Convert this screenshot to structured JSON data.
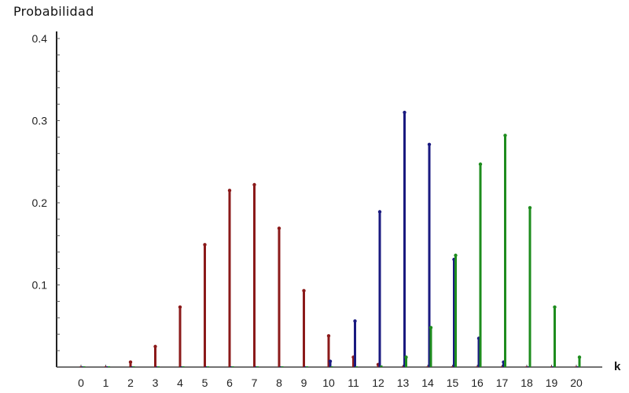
{
  "chart_data": {
    "type": "bar",
    "title": "",
    "xlabel": "k",
    "ylabel": "Probabilidad",
    "ylim": [
      0,
      0.4
    ],
    "xlim": [
      -0.5,
      20.5
    ],
    "grid": false,
    "legend": null,
    "x": [
      0,
      1,
      2,
      3,
      4,
      5,
      6,
      7,
      8,
      9,
      10,
      11,
      12,
      13,
      14,
      15,
      16,
      17,
      18,
      19,
      20
    ],
    "x_tick_labels": [
      "0",
      "1",
      "2",
      "3",
      "4",
      "5",
      "6",
      "7",
      "8",
      "9",
      "10",
      "11",
      "12",
      "13",
      "14",
      "15",
      "16",
      "17",
      "18",
      "19",
      "20"
    ],
    "y_tick_labels": [
      "0.1",
      "0.2",
      "0.3",
      "0.4"
    ],
    "y_ticks": [
      0.1,
      0.2,
      0.3,
      0.4
    ],
    "series": [
      {
        "name": "red",
        "color": "#8B1A1A",
        "values": [
          0.0,
          0.001,
          0.006,
          0.025,
          0.073,
          0.149,
          0.215,
          0.222,
          0.169,
          0.093,
          0.038,
          0.012,
          0.003,
          0.001,
          0.0,
          0.0,
          0.0,
          0.0,
          0.0,
          0.0,
          0.0
        ]
      },
      {
        "name": "blue",
        "color": "#1A1A80",
        "values": [
          0.0,
          0.0,
          0.0,
          0.0,
          0.0,
          0.0,
          0.0,
          0.0,
          0.0,
          0.0,
          0.007,
          0.056,
          0.189,
          0.31,
          0.271,
          0.131,
          0.035,
          0.006,
          0.001,
          0.0,
          0.0
        ]
      },
      {
        "name": "green",
        "color": "#1E8C1E",
        "values": [
          0.0,
          0.0,
          0.0,
          0.0,
          0.0,
          0.0,
          0.0,
          0.0,
          0.0,
          0.0,
          0.0,
          0.0,
          0.002,
          0.012,
          0.048,
          0.136,
          0.247,
          0.282,
          0.194,
          0.073,
          0.012
        ]
      }
    ]
  },
  "labels": {
    "y_axis_title": "Probabilidad",
    "x_axis_title": "k"
  }
}
